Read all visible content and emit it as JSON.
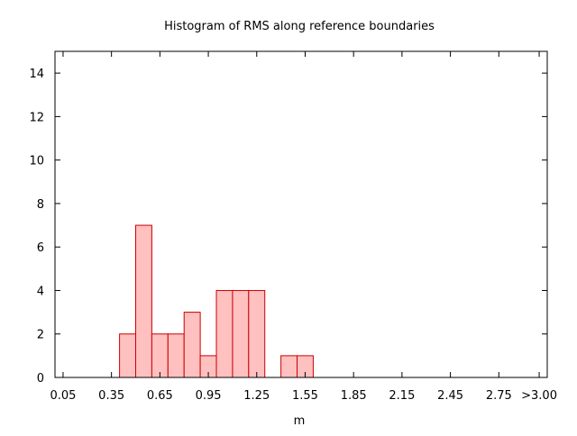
{
  "chart_data": {
    "type": "bar",
    "title": "Histogram of RMS along reference boundaries",
    "xlabel": "m",
    "ylabel": "",
    "xlim": [
      0.0,
      3.05
    ],
    "ylim": [
      0,
      15
    ],
    "yticks": [
      0,
      2,
      4,
      6,
      8,
      10,
      12,
      14
    ],
    "xticks": [
      {
        "value": 0.05,
        "label": "0.05"
      },
      {
        "value": 0.35,
        "label": "0.35"
      },
      {
        "value": 0.65,
        "label": "0.65"
      },
      {
        "value": 0.95,
        "label": "0.95"
      },
      {
        "value": 1.25,
        "label": "1.25"
      },
      {
        "value": 1.55,
        "label": "1.55"
      },
      {
        "value": 1.85,
        "label": "1.85"
      },
      {
        "value": 2.15,
        "label": "2.15"
      },
      {
        "value": 2.45,
        "label": "2.45"
      },
      {
        "value": 2.75,
        "label": "2.75"
      },
      {
        "value": 3.0,
        "label": ">3.00"
      }
    ],
    "bin_width": 0.1,
    "bins": [
      {
        "start": 0.4,
        "count": 2
      },
      {
        "start": 0.5,
        "count": 7
      },
      {
        "start": 0.6,
        "count": 2
      },
      {
        "start": 0.7,
        "count": 2
      },
      {
        "start": 0.8,
        "count": 3
      },
      {
        "start": 0.9,
        "count": 1
      },
      {
        "start": 1.0,
        "count": 4
      },
      {
        "start": 1.1,
        "count": 4
      },
      {
        "start": 1.2,
        "count": 4
      },
      {
        "start": 1.4,
        "count": 1
      },
      {
        "start": 1.5,
        "count": 1
      }
    ],
    "bar_fill": "#ffc0c0",
    "bar_stroke": "#cc0000",
    "grid": false,
    "legend": "none"
  }
}
